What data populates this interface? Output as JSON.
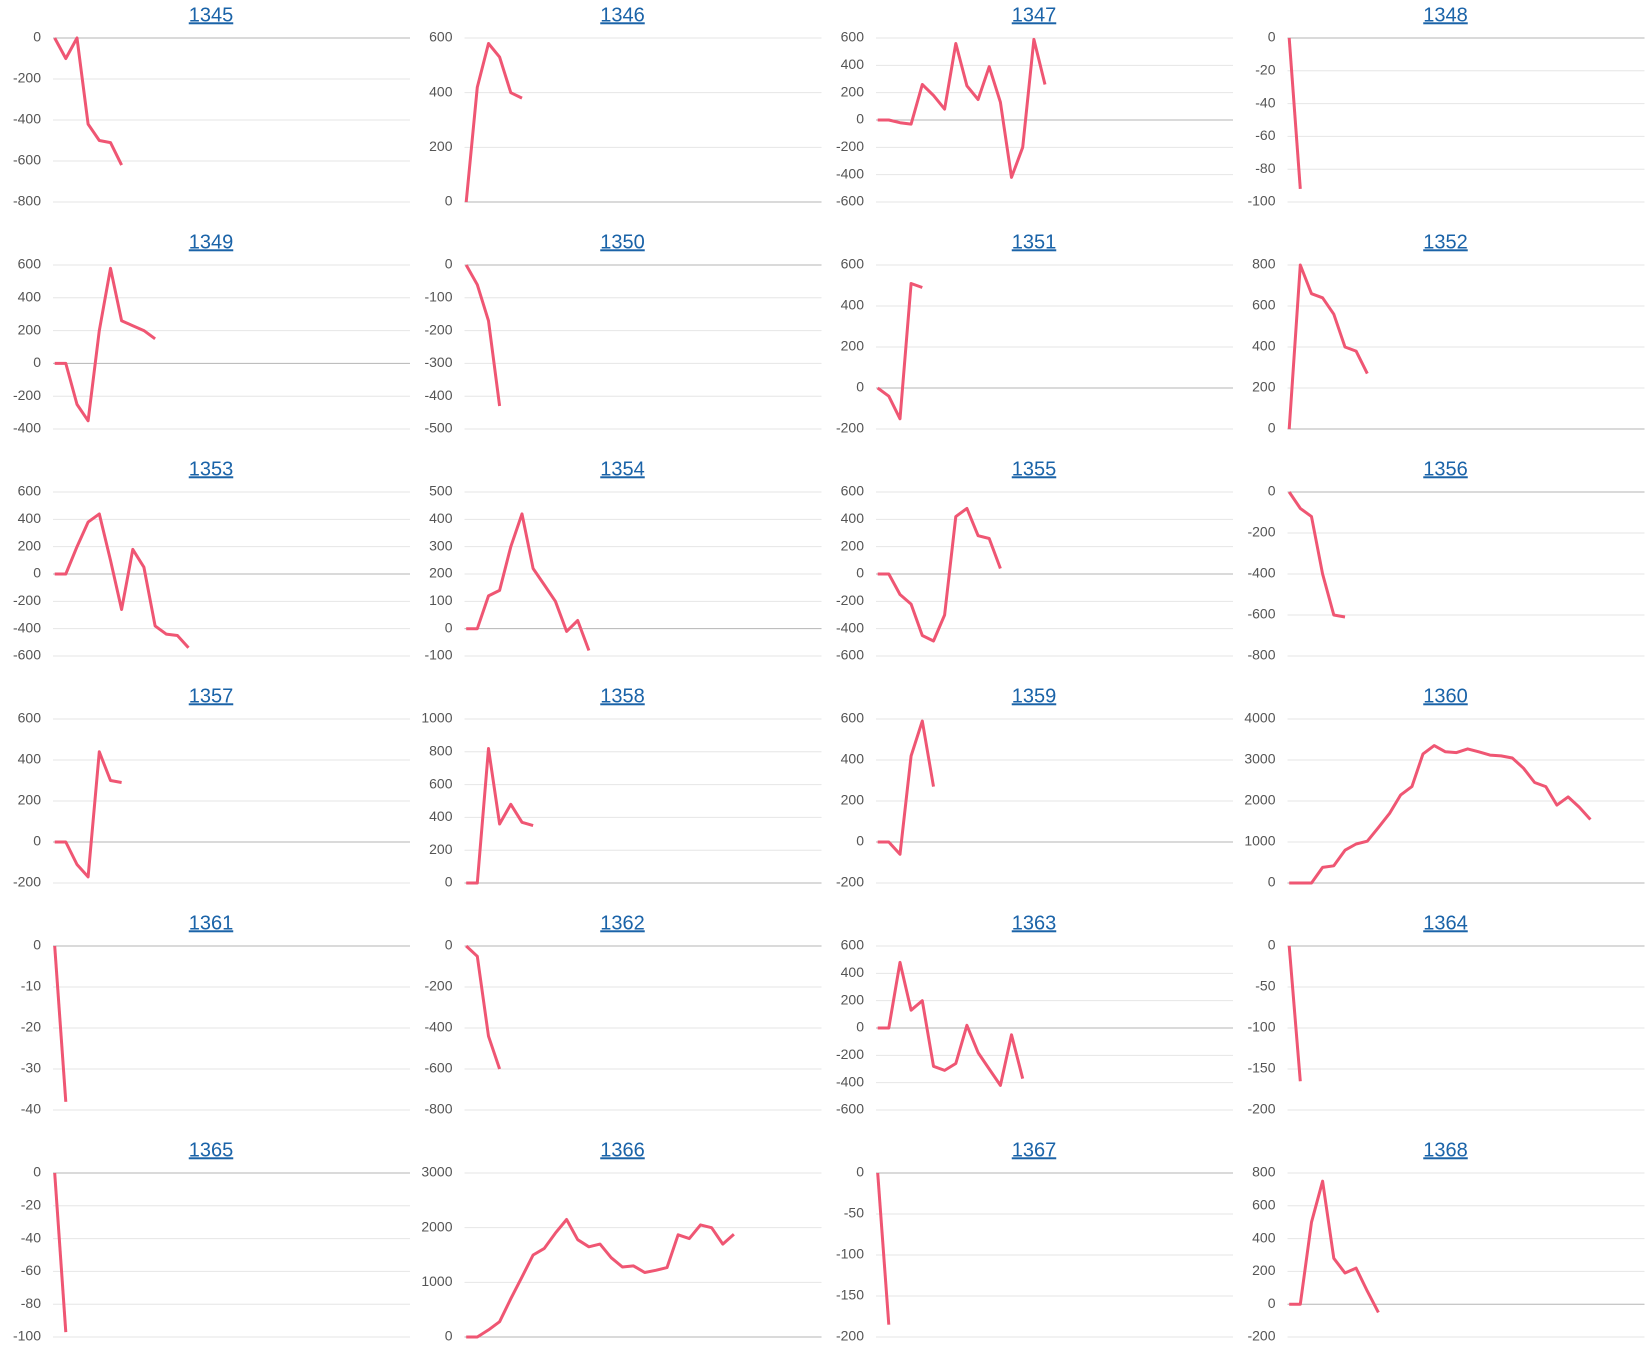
{
  "chart_data": [
    {
      "type": "line",
      "title": "1345",
      "color": "#ef5673",
      "grid": true,
      "ylim": [
        -800,
        0
      ],
      "yticks": [
        0,
        -200,
        -400,
        -600,
        -800
      ],
      "values": [
        0,
        -100,
        0,
        -420,
        -500,
        -510,
        -620
      ]
    },
    {
      "type": "line",
      "title": "1346",
      "color": "#ef5673",
      "grid": true,
      "ylim": [
        0,
        600
      ],
      "yticks": [
        0,
        200,
        400,
        600
      ],
      "values": [
        0,
        420,
        580,
        530,
        400,
        380
      ]
    },
    {
      "type": "line",
      "title": "1347",
      "color": "#ef5673",
      "grid": true,
      "ylim": [
        -600,
        600
      ],
      "yticks": [
        600,
        400,
        200,
        0,
        -200,
        -400,
        -600
      ],
      "values": [
        0,
        0,
        -20,
        -30,
        260,
        180,
        80,
        560,
        250,
        150,
        390,
        130,
        -420,
        -200,
        590,
        260
      ]
    },
    {
      "type": "line",
      "title": "1348",
      "color": "#ef5673",
      "grid": true,
      "ylim": [
        -100,
        0
      ],
      "yticks": [
        0,
        -20,
        -40,
        -60,
        -80,
        -100
      ],
      "values": [
        0,
        -92
      ]
    },
    {
      "type": "line",
      "title": "1349",
      "color": "#ef5673",
      "grid": true,
      "ylim": [
        -400,
        600
      ],
      "yticks": [
        600,
        400,
        200,
        0,
        -200,
        -400
      ],
      "values": [
        0,
        0,
        -250,
        -350,
        200,
        580,
        260,
        230,
        200,
        150
      ]
    },
    {
      "type": "line",
      "title": "1350",
      "color": "#ef5673",
      "grid": true,
      "ylim": [
        -500,
        0
      ],
      "yticks": [
        0,
        -100,
        -200,
        -300,
        -400,
        -500
      ],
      "values": [
        0,
        -60,
        -170,
        -430
      ]
    },
    {
      "type": "line",
      "title": "1351",
      "color": "#ef5673",
      "grid": true,
      "ylim": [
        -200,
        600
      ],
      "yticks": [
        600,
        400,
        200,
        0,
        -200
      ],
      "values": [
        0,
        -40,
        -150,
        510,
        490
      ]
    },
    {
      "type": "line",
      "title": "1352",
      "color": "#ef5673",
      "grid": true,
      "ylim": [
        0,
        800
      ],
      "yticks": [
        800,
        600,
        400,
        200,
        0
      ],
      "values": [
        0,
        800,
        660,
        640,
        560,
        400,
        380,
        270
      ]
    },
    {
      "type": "line",
      "title": "1353",
      "color": "#ef5673",
      "grid": true,
      "ylim": [
        -600,
        600
      ],
      "yticks": [
        600,
        400,
        200,
        0,
        -200,
        -400,
        -600
      ],
      "values": [
        0,
        0,
        200,
        380,
        440,
        100,
        -260,
        180,
        50,
        -380,
        -440,
        -450,
        -540
      ]
    },
    {
      "type": "line",
      "title": "1354",
      "color": "#ef5673",
      "grid": true,
      "ylim": [
        -100,
        500
      ],
      "yticks": [
        500,
        400,
        300,
        200,
        100,
        0,
        -100
      ],
      "values": [
        0,
        0,
        120,
        140,
        300,
        420,
        220,
        160,
        100,
        -10,
        30,
        -80
      ]
    },
    {
      "type": "line",
      "title": "1355",
      "color": "#ef5673",
      "grid": true,
      "ylim": [
        -600,
        600
      ],
      "yticks": [
        600,
        400,
        200,
        0,
        -200,
        -400,
        -600
      ],
      "values": [
        0,
        0,
        -150,
        -220,
        -450,
        -490,
        -300,
        420,
        480,
        280,
        260,
        40
      ]
    },
    {
      "type": "line",
      "title": "1356",
      "color": "#ef5673",
      "grid": true,
      "ylim": [
        -800,
        0
      ],
      "yticks": [
        0,
        -200,
        -400,
        -600,
        -800
      ],
      "values": [
        0,
        -80,
        -120,
        -400,
        -600,
        -610
      ]
    },
    {
      "type": "line",
      "title": "1357",
      "color": "#ef5673",
      "grid": true,
      "ylim": [
        -200,
        600
      ],
      "yticks": [
        600,
        400,
        200,
        0,
        -200
      ],
      "values": [
        0,
        0,
        -110,
        -170,
        440,
        300,
        290
      ]
    },
    {
      "type": "line",
      "title": "1358",
      "color": "#ef5673",
      "grid": true,
      "ylim": [
        0,
        1000
      ],
      "yticks": [
        1000,
        800,
        600,
        400,
        200,
        0
      ],
      "values": [
        0,
        0,
        820,
        360,
        480,
        370,
        350
      ]
    },
    {
      "type": "line",
      "title": "1359",
      "color": "#ef5673",
      "grid": true,
      "ylim": [
        -200,
        600
      ],
      "yticks": [
        600,
        400,
        200,
        0,
        -200
      ],
      "values": [
        0,
        0,
        -60,
        420,
        590,
        270
      ]
    },
    {
      "type": "line",
      "title": "1360",
      "color": "#ef5673",
      "grid": true,
      "ylim": [
        0,
        4000
      ],
      "yticks": [
        4000,
        3000,
        2000,
        1000,
        0
      ],
      "values": [
        0,
        0,
        0,
        380,
        420,
        800,
        950,
        1020,
        1350,
        1700,
        2150,
        2350,
        3150,
        3350,
        3200,
        3180,
        3270,
        3200,
        3120,
        3100,
        3050,
        2800,
        2450,
        2350,
        1900,
        2100,
        1850,
        1550
      ]
    },
    {
      "type": "line",
      "title": "1361",
      "color": "#ef5673",
      "grid": true,
      "ylim": [
        -40,
        0
      ],
      "yticks": [
        0,
        -10,
        -20,
        -30,
        -40
      ],
      "values": [
        0,
        -38
      ]
    },
    {
      "type": "line",
      "title": "1362",
      "color": "#ef5673",
      "grid": true,
      "ylim": [
        -800,
        0
      ],
      "yticks": [
        0,
        -200,
        -400,
        -600,
        -800
      ],
      "values": [
        0,
        -50,
        -440,
        -600
      ]
    },
    {
      "type": "line",
      "title": "1363",
      "color": "#ef5673",
      "grid": true,
      "ylim": [
        -600,
        600
      ],
      "yticks": [
        600,
        400,
        200,
        0,
        -200,
        -400,
        -600
      ],
      "values": [
        0,
        0,
        480,
        130,
        200,
        -280,
        -310,
        -260,
        20,
        -180,
        -300,
        -420,
        -50,
        -370
      ]
    },
    {
      "type": "line",
      "title": "1364",
      "color": "#ef5673",
      "grid": true,
      "ylim": [
        -200,
        0
      ],
      "yticks": [
        0,
        -50,
        -100,
        -150,
        -200
      ],
      "values": [
        0,
        -165
      ]
    },
    {
      "type": "line",
      "title": "1365",
      "color": "#ef5673",
      "grid": true,
      "ylim": [
        -100,
        0
      ],
      "yticks": [
        0,
        -20,
        -40,
        -60,
        -80,
        -100
      ],
      "values": [
        0,
        -97
      ]
    },
    {
      "type": "line",
      "title": "1366",
      "color": "#ef5673",
      "grid": true,
      "ylim": [
        0,
        3000
      ],
      "yticks": [
        3000,
        2000,
        1000,
        0
      ],
      "values": [
        0,
        0,
        130,
        280,
        700,
        1100,
        1500,
        1620,
        1900,
        2150,
        1780,
        1650,
        1700,
        1450,
        1280,
        1300,
        1180,
        1220,
        1270,
        1870,
        1800,
        2050,
        2000,
        1700,
        1880
      ]
    },
    {
      "type": "line",
      "title": "1367",
      "color": "#ef5673",
      "grid": true,
      "ylim": [
        -200,
        0
      ],
      "yticks": [
        0,
        -50,
        -100,
        -150,
        -200
      ],
      "values": [
        0,
        -185
      ]
    },
    {
      "type": "line",
      "title": "1368",
      "color": "#ef5673",
      "grid": true,
      "ylim": [
        -200,
        800
      ],
      "yticks": [
        800,
        600,
        400,
        200,
        0,
        -200
      ],
      "values": [
        0,
        0,
        500,
        750,
        280,
        190,
        220,
        80,
        -50
      ]
    }
  ]
}
